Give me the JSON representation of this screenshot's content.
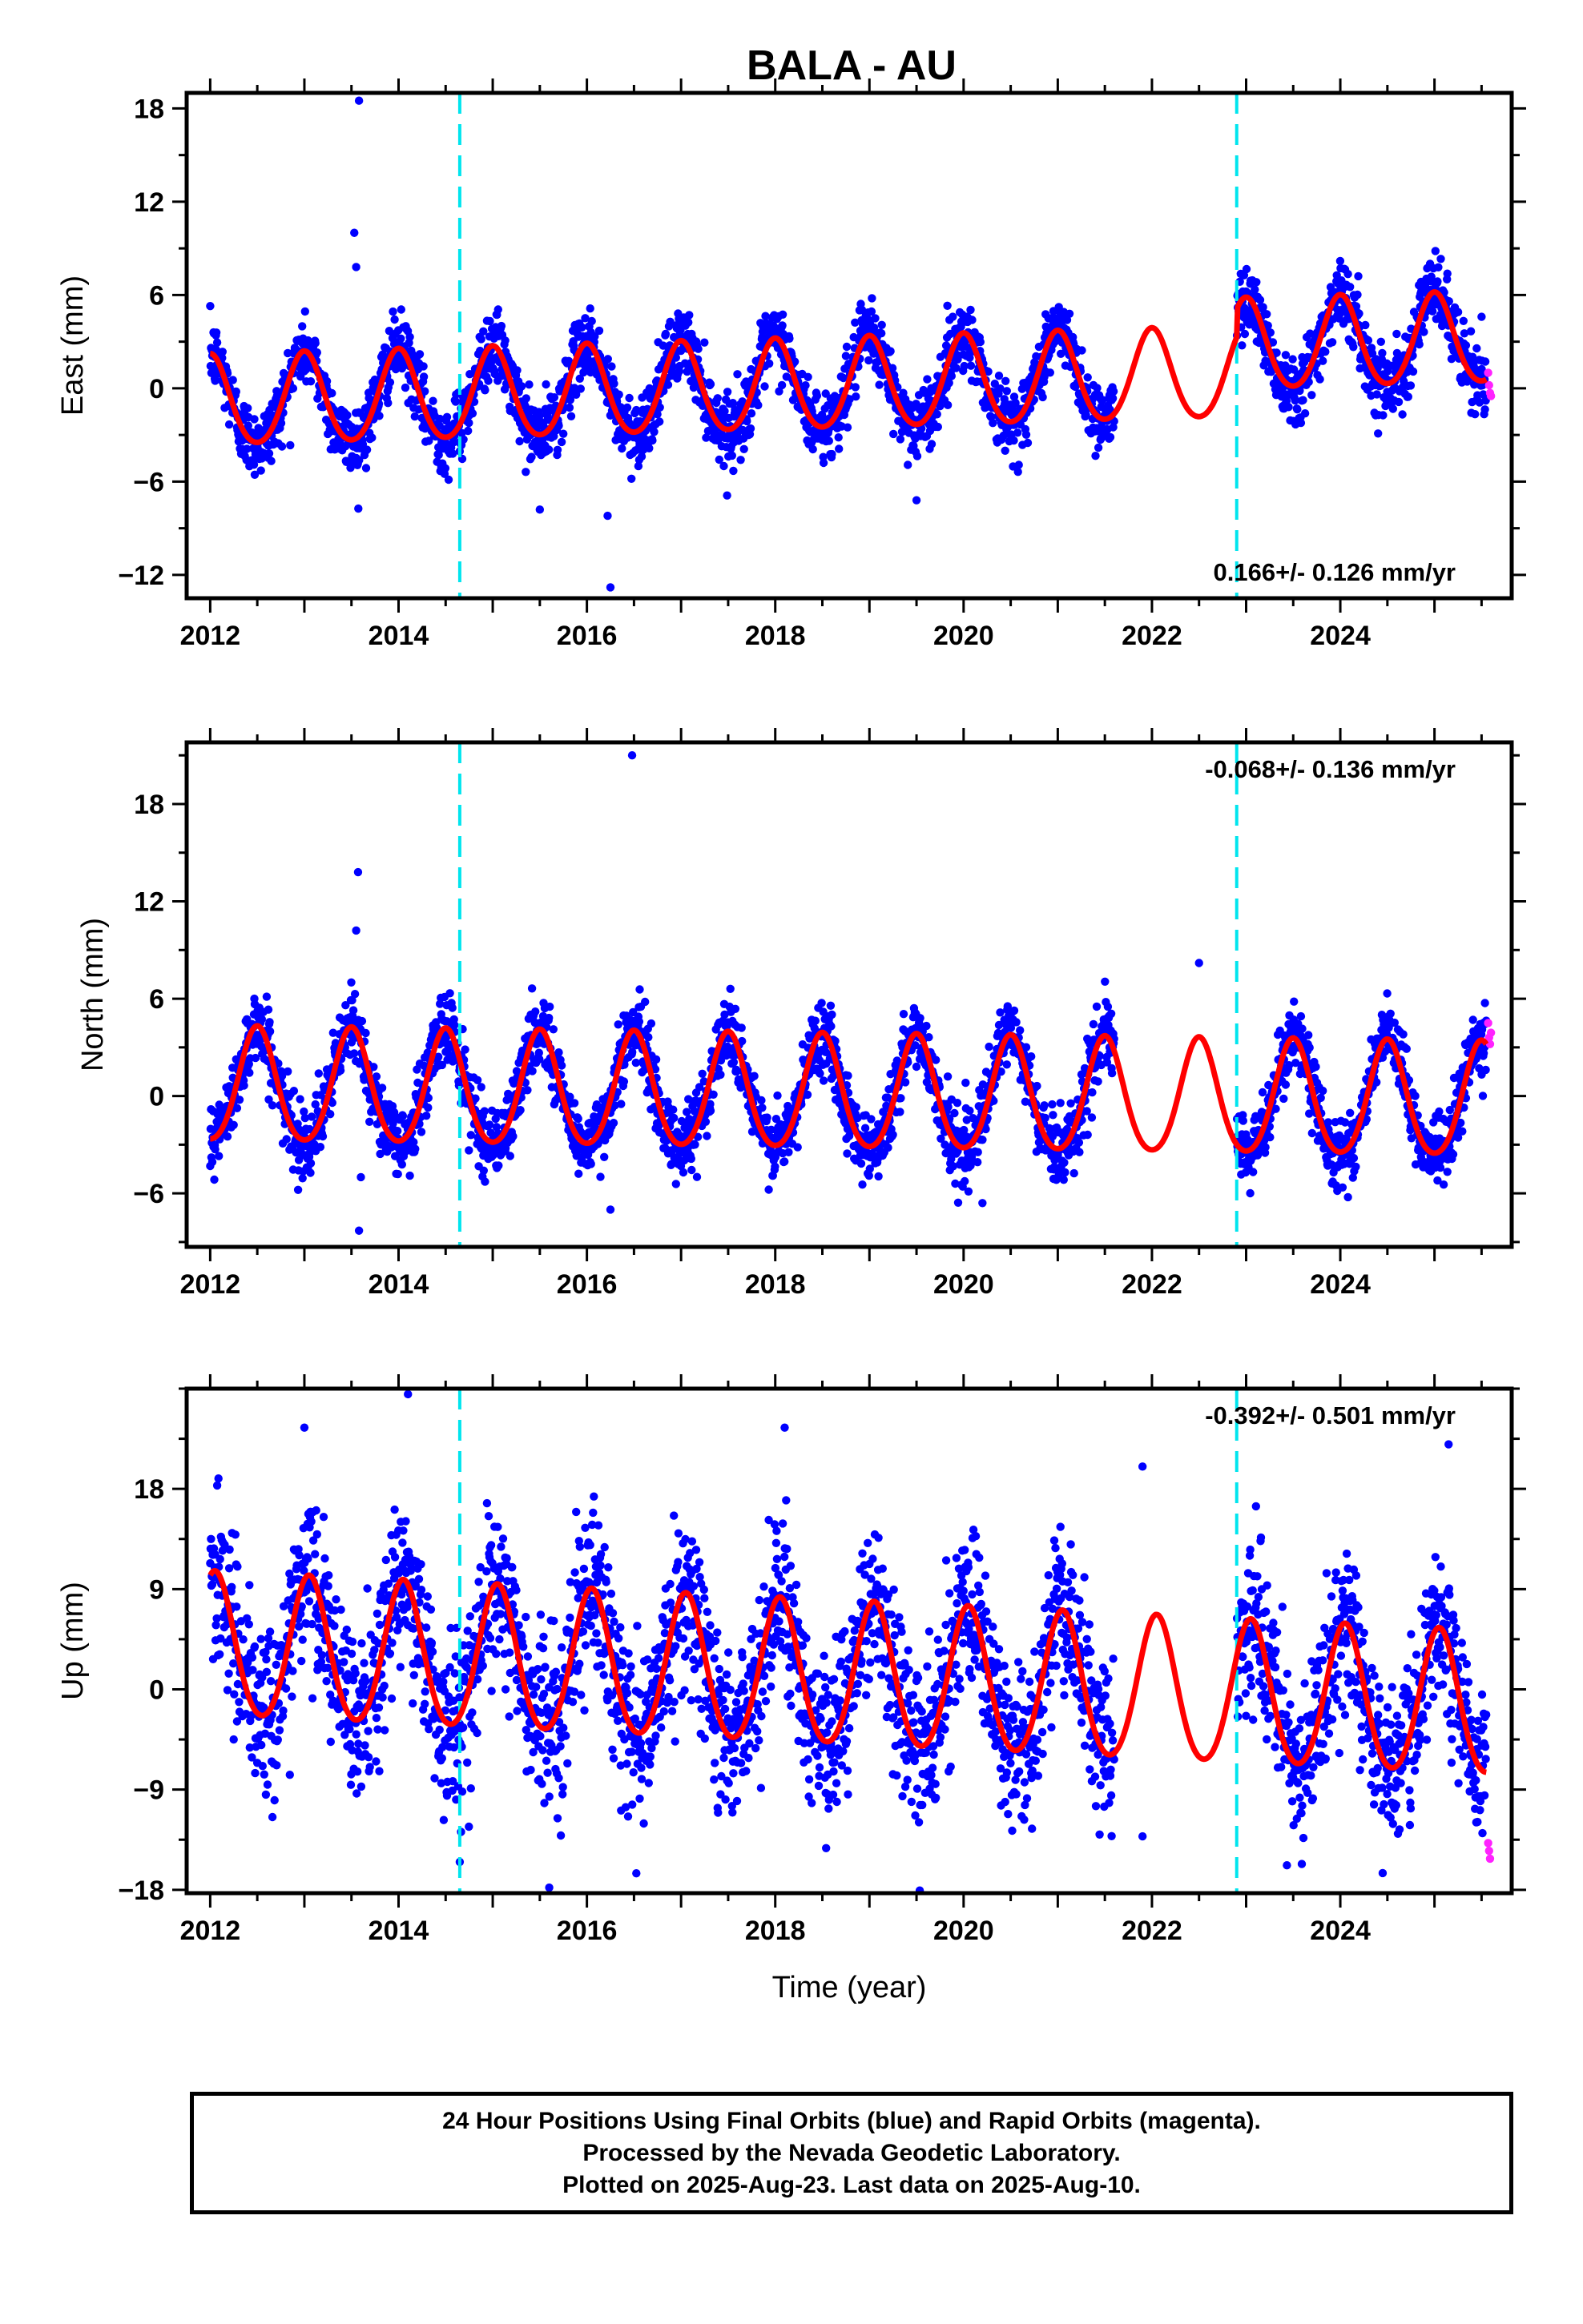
{
  "title": "BALA - AU",
  "colors": {
    "final_orbits": "#0000ff",
    "rapid_orbits": "#ff22ff",
    "model": "#ff0000",
    "breaks": "#00e5ee",
    "frame": "#000000"
  },
  "chart_data": [
    {
      "type": "scatter",
      "name": "east",
      "ylabel": "East (mm)",
      "xlabel": "",
      "xlim": [
        2011.75,
        2025.82
      ],
      "ylim": [
        -13.5,
        19
      ],
      "yticks": [
        -12,
        -6,
        0,
        6,
        12,
        18
      ],
      "xticks": [
        2012,
        2014,
        2016,
        2018,
        2020,
        2022,
        2024
      ],
      "rate_text": "0.166+/- 0.126 mm/yr",
      "rate_position": "bottom-right",
      "break_lines_x": [
        2014.65,
        2022.9
      ],
      "model": {
        "offset": 0.166,
        "rate": 0.166,
        "annual_amplitude": 2.9,
        "annual_phase_year": 2013.0,
        "semiannual_amplitude": 0.3,
        "step_at": 2022.9,
        "step_size": 1.8
      },
      "final_orbit_span": [
        2012.0,
        2025.55
      ],
      "gap": [
        2021.6,
        2022.9
      ],
      "scatter_sd": 1.1,
      "outliers": [
        [
          2013.58,
          18.5
        ],
        [
          2013.53,
          10.0
        ],
        [
          2013.55,
          7.8
        ],
        [
          2016.25,
          -12.8
        ],
        [
          2016.22,
          -8.2
        ],
        [
          2015.5,
          -7.8
        ],
        [
          2019.5,
          -7.2
        ],
        [
          2025.5,
          4.6
        ]
      ],
      "rapid_points": [
        [
          2025.57,
          1.0
        ],
        [
          2025.58,
          0.2
        ],
        [
          2025.59,
          -0.3
        ],
        [
          2025.6,
          -0.5
        ]
      ]
    },
    {
      "type": "scatter",
      "name": "north",
      "ylabel": "North (mm)",
      "xlabel": "",
      "xlim": [
        2011.75,
        2025.82
      ],
      "ylim": [
        -9.3,
        21.8
      ],
      "yticks": [
        -6,
        0,
        6,
        12,
        18
      ],
      "xticks": [
        2012,
        2014,
        2016,
        2018,
        2020,
        2022,
        2024
      ],
      "rate_text": "-0.068+/- 0.136 mm/yr",
      "rate_position": "top-right",
      "break_lines_x": [
        2014.65,
        2022.9
      ],
      "model": {
        "offset": 0.0,
        "rate": -0.068,
        "annual_amplitude": 3.5,
        "annual_phase_year": 2012.5,
        "semiannual_amplitude": 0.4,
        "step_at": null,
        "step_size": 0
      },
      "final_orbit_span": [
        2012.0,
        2025.55
      ],
      "gap": [
        2021.6,
        2022.9
      ],
      "scatter_sd": 1.1,
      "outliers": [
        [
          2016.48,
          21.0
        ],
        [
          2013.57,
          13.8
        ],
        [
          2013.55,
          10.2
        ],
        [
          2013.6,
          -5.0
        ],
        [
          2013.58,
          -8.3
        ],
        [
          2016.25,
          -7.0
        ],
        [
          2020.2,
          -6.6
        ],
        [
          2022.5,
          8.2
        ]
      ],
      "rapid_points": [
        [
          2025.57,
          4.5
        ],
        [
          2025.58,
          3.6
        ],
        [
          2025.59,
          3.2
        ],
        [
          2025.6,
          3.9
        ]
      ]
    },
    {
      "type": "scatter",
      "name": "up",
      "ylabel": "Up (mm)",
      "xlabel": "Time (year)",
      "xlim": [
        2011.75,
        2025.82
      ],
      "ylim": [
        -18.3,
        27
      ],
      "yticks": [
        -18,
        -9,
        0,
        9,
        18
      ],
      "xticks": [
        2012,
        2014,
        2016,
        2018,
        2020,
        2022,
        2024
      ],
      "rate_text": "-0.392+/- 0.501 mm/yr",
      "rate_position": "top-right",
      "break_lines_x": [
        2014.65,
        2022.9
      ],
      "model": {
        "offset": 1.0,
        "rate": -0.392,
        "annual_amplitude": 6.4,
        "annual_phase_year": 2013.05,
        "semiannual_amplitude": 0.6,
        "step_at": null,
        "step_size": 0
      },
      "final_orbit_span": [
        2012.0,
        2025.55
      ],
      "gap": [
        2021.6,
        2022.9
      ],
      "scatter_sd": 3.6,
      "outliers": [
        [
          2014.1,
          26.5
        ],
        [
          2013.0,
          23.5
        ],
        [
          2018.1,
          23.5
        ],
        [
          2021.9,
          20.0
        ],
        [
          2025.15,
          22.0
        ],
        [
          2015.6,
          -17.8
        ],
        [
          2024.45,
          -16.5
        ],
        [
          2014.65,
          -15.5
        ],
        [
          2021.9,
          -13.2
        ]
      ],
      "rapid_points": [
        [
          2025.57,
          -13.8
        ],
        [
          2025.58,
          -14.5
        ],
        [
          2025.59,
          -15.2
        ]
      ]
    }
  ],
  "footer": {
    "line1": "24 Hour Positions Using Final Orbits (blue) and Rapid Orbits (magenta).",
    "line2": "Processed by the Nevada Geodetic Laboratory.",
    "line3": "Plotted on 2025-Aug-23. Last data on 2025-Aug-10."
  }
}
